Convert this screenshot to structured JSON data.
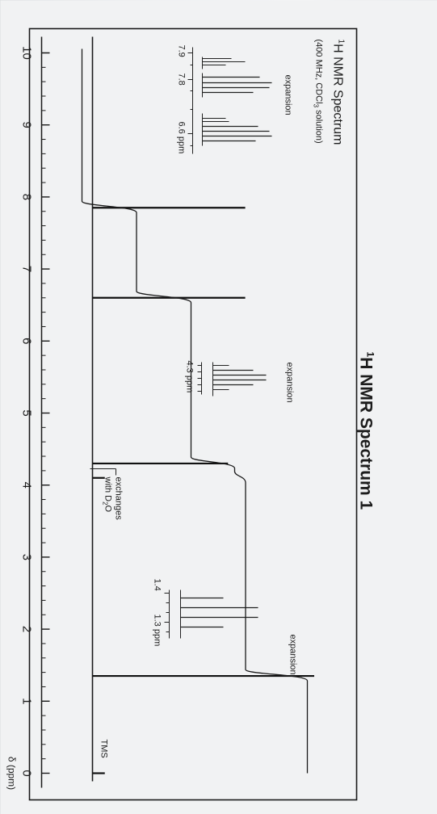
{
  "heading": {
    "prefix": "1",
    "text": "H NMR Spectrum 1"
  },
  "box_title": {
    "prefix": "1",
    "text": "H NMR Spectrum",
    "condition": "(400 MHz, CDCl",
    "condition_sub": "3",
    "condition_end": " solution)"
  },
  "insets": [
    {
      "label": "expansion",
      "ticks": [
        "7.9",
        "7.8",
        "6.6 ppm"
      ]
    },
    {
      "label": "expansion",
      "ticks": [
        "4.3 ppm"
      ]
    },
    {
      "label": "expansion",
      "ticks": [
        "1.4",
        "1.3 ppm"
      ]
    }
  ],
  "annotations": {
    "exch_line1": "exchanges",
    "exch_line2_main": "with D",
    "exch_line2_sub": "2",
    "exch_line2_end": "O",
    "tms": "TMS"
  },
  "chart_data": {
    "type": "line",
    "title": "1H NMR Spectrum 1",
    "xlabel": "δ (ppm)",
    "xlim": [
      10,
      0
    ],
    "x_ticks": [
      "10",
      "9",
      "8",
      "7",
      "6",
      "5",
      "4",
      "3",
      "2",
      "1",
      "0"
    ],
    "peaks": [
      {
        "ppm": 7.85,
        "height": 0.62
      },
      {
        "ppm": 6.6,
        "height": 0.62
      },
      {
        "ppm": 4.3,
        "height": 0.55
      },
      {
        "ppm": 4.1,
        "height": 0.05
      },
      {
        "ppm": 1.35,
        "height": 0.9
      },
      {
        "ppm": 0.0,
        "height": 0.05
      }
    ],
    "integration_steps": [
      {
        "ppm": 7.85,
        "from": 0.0,
        "to": 0.15
      },
      {
        "ppm": 6.6,
        "from": 0.15,
        "to": 0.3
      },
      {
        "ppm": 4.3,
        "from": 0.3,
        "to": 0.42
      },
      {
        "ppm": 4.1,
        "from": 0.42,
        "to": 0.45
      },
      {
        "ppm": 1.35,
        "from": 0.45,
        "to": 0.62
      }
    ],
    "grid": false
  }
}
